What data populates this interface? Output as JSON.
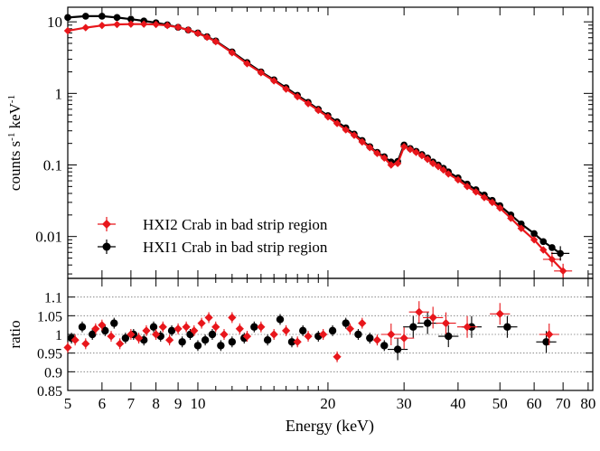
{
  "chart_data": [
    {
      "type": "scatter",
      "panel": "spectrum",
      "ylabel_main": "counts s",
      "ylabel_exp1": "-1",
      "ylabel_unit": " keV",
      "ylabel_exp2": "-1",
      "xscale": "log",
      "yscale": "log",
      "xlim": [
        5,
        82
      ],
      "ylim": [
        0.0026,
        16
      ],
      "ytick_values": [
        0.01,
        0.1,
        1,
        10
      ],
      "ytick_labels": [
        "0.01",
        "0.1",
        "1",
        "10"
      ],
      "legend_position": "bottom-left",
      "series": [
        {
          "name": "HXI2 Crab in bad strip region",
          "color": "#e8161b",
          "marker": "diamond",
          "x": [
            5,
            5.5,
            6,
            6.5,
            7,
            7.5,
            8,
            8.5,
            9,
            9.5,
            10,
            10.5,
            11,
            12,
            13,
            14,
            15,
            16,
            17,
            18,
            19,
            20,
            21,
            22,
            23,
            24,
            25,
            26,
            27,
            28,
            29,
            30,
            31,
            32,
            33,
            34,
            35,
            36,
            37,
            38,
            40,
            42,
            44,
            46,
            48,
            50,
            53,
            56,
            60,
            63,
            66,
            70
          ],
          "y": [
            7.5,
            8.3,
            8.9,
            9.2,
            9.3,
            9.3,
            9.2,
            8.9,
            8.4,
            7.7,
            6.9,
            6.1,
            5.3,
            3.7,
            2.6,
            1.95,
            1.5,
            1.15,
            0.9,
            0.72,
            0.58,
            0.47,
            0.38,
            0.31,
            0.26,
            0.21,
            0.175,
            0.145,
            0.125,
            0.1,
            0.105,
            0.18,
            0.165,
            0.15,
            0.135,
            0.12,
            0.105,
            0.095,
            0.085,
            0.075,
            0.062,
            0.05,
            0.042,
            0.035,
            0.03,
            0.025,
            0.018,
            0.013,
            0.009,
            0.0065,
            0.0048,
            0.0033
          ]
        },
        {
          "name": "HXI1 Crab in bad strip region",
          "color": "#000000",
          "marker": "circle",
          "x": [
            5,
            5.5,
            6,
            6.5,
            7,
            7.5,
            8,
            8.5,
            9,
            9.5,
            10,
            10.5,
            11,
            12,
            13,
            14,
            15,
            16,
            17,
            18,
            19,
            20,
            21,
            22,
            23,
            24,
            25,
            26,
            27,
            28,
            29,
            30,
            31,
            32,
            33,
            34,
            35,
            36,
            37,
            38,
            40,
            42,
            44,
            46,
            48,
            50,
            53,
            56,
            60,
            63,
            66,
            69
          ],
          "y": [
            11.5,
            12.0,
            12.0,
            11.5,
            10.9,
            10.3,
            9.7,
            9.1,
            8.4,
            7.7,
            7.0,
            6.2,
            5.4,
            3.8,
            2.7,
            2.0,
            1.55,
            1.2,
            0.94,
            0.75,
            0.6,
            0.49,
            0.4,
            0.33,
            0.27,
            0.22,
            0.18,
            0.15,
            0.13,
            0.11,
            0.112,
            0.19,
            0.17,
            0.155,
            0.14,
            0.125,
            0.11,
            0.1,
            0.09,
            0.08,
            0.066,
            0.054,
            0.045,
            0.038,
            0.032,
            0.027,
            0.02,
            0.015,
            0.011,
            0.0085,
            0.007,
            0.0058
          ]
        }
      ]
    },
    {
      "type": "scatter",
      "panel": "ratio",
      "ylabel": "ratio",
      "xlabel": "Energy (keV)",
      "xscale": "log",
      "xlim": [
        5,
        82
      ],
      "ylim": [
        0.85,
        1.15
      ],
      "ytick_values": [
        0.85,
        0.9,
        0.95,
        1,
        1.05,
        1.1
      ],
      "ytick_labels": [
        "0.85",
        "0.9",
        "0.95",
        "1",
        "1.05",
        "1.1"
      ],
      "xtick_values": [
        5,
        6,
        7,
        8,
        9,
        10,
        20,
        30,
        40,
        50,
        60,
        70,
        80
      ],
      "xtick_labels": [
        "5",
        "6",
        "7",
        "8",
        "9",
        "10",
        "20",
        "30",
        "40",
        "50",
        "60",
        "70",
        "80"
      ],
      "reference_lines": [
        0.9,
        0.95,
        1,
        1.05,
        1.1
      ],
      "series": [
        {
          "name": "HXI2 Crab in bad strip region",
          "color": "#e8161b",
          "marker": "diamond",
          "x": [
            5.0,
            5.2,
            5.5,
            5.8,
            6.0,
            6.3,
            6.6,
            7.0,
            7.3,
            7.6,
            8.0,
            8.3,
            8.6,
            9.0,
            9.4,
            9.8,
            10.2,
            10.6,
            11.0,
            11.5,
            12.0,
            12.5,
            13.0,
            14.0,
            15.0,
            16.0,
            17.0,
            18.0,
            19.5,
            21.0,
            22.5,
            24.0,
            26.0,
            28.0,
            30.0,
            32.5,
            35.0,
            37.5,
            42.0,
            50.0,
            65.0
          ],
          "y": [
            0.965,
            0.985,
            0.975,
            1.015,
            1.025,
            0.995,
            0.975,
            1.0,
            0.99,
            1.01,
            1.0,
            1.02,
            0.985,
            1.015,
            1.02,
            1.01,
            1.03,
            1.045,
            1.02,
            1.0,
            1.045,
            1.015,
            0.995,
            1.02,
            1.0,
            1.01,
            0.98,
            0.995,
            1.0,
            0.94,
            1.015,
            1.03,
            0.985,
            1.0,
            0.99,
            1.06,
            1.045,
            1.03,
            1.02,
            1.055,
            1.0
          ]
        },
        {
          "name": "HXI1 Crab in bad strip region",
          "color": "#000000",
          "marker": "circle",
          "x": [
            5.1,
            5.4,
            5.7,
            6.1,
            6.4,
            6.8,
            7.1,
            7.5,
            7.9,
            8.2,
            8.7,
            9.2,
            9.6,
            10.0,
            10.4,
            10.8,
            11.3,
            12.0,
            12.8,
            13.5,
            14.5,
            15.5,
            16.5,
            17.5,
            19.0,
            20.5,
            22.0,
            23.5,
            25.0,
            27.0,
            29.0,
            31.5,
            34.0,
            38.0,
            43.0,
            52.0,
            64.0
          ],
          "y": [
            0.99,
            1.02,
            1.0,
            1.01,
            1.03,
            0.99,
            1.0,
            0.985,
            1.02,
            0.995,
            1.01,
            0.98,
            1.0,
            0.97,
            0.985,
            1.0,
            0.97,
            0.98,
            0.99,
            1.02,
            0.985,
            1.04,
            0.98,
            1.01,
            0.995,
            1.01,
            1.03,
            1.0,
            0.99,
            0.97,
            0.96,
            1.02,
            1.03,
            0.995,
            1.02,
            1.02,
            0.98
          ]
        }
      ]
    }
  ]
}
